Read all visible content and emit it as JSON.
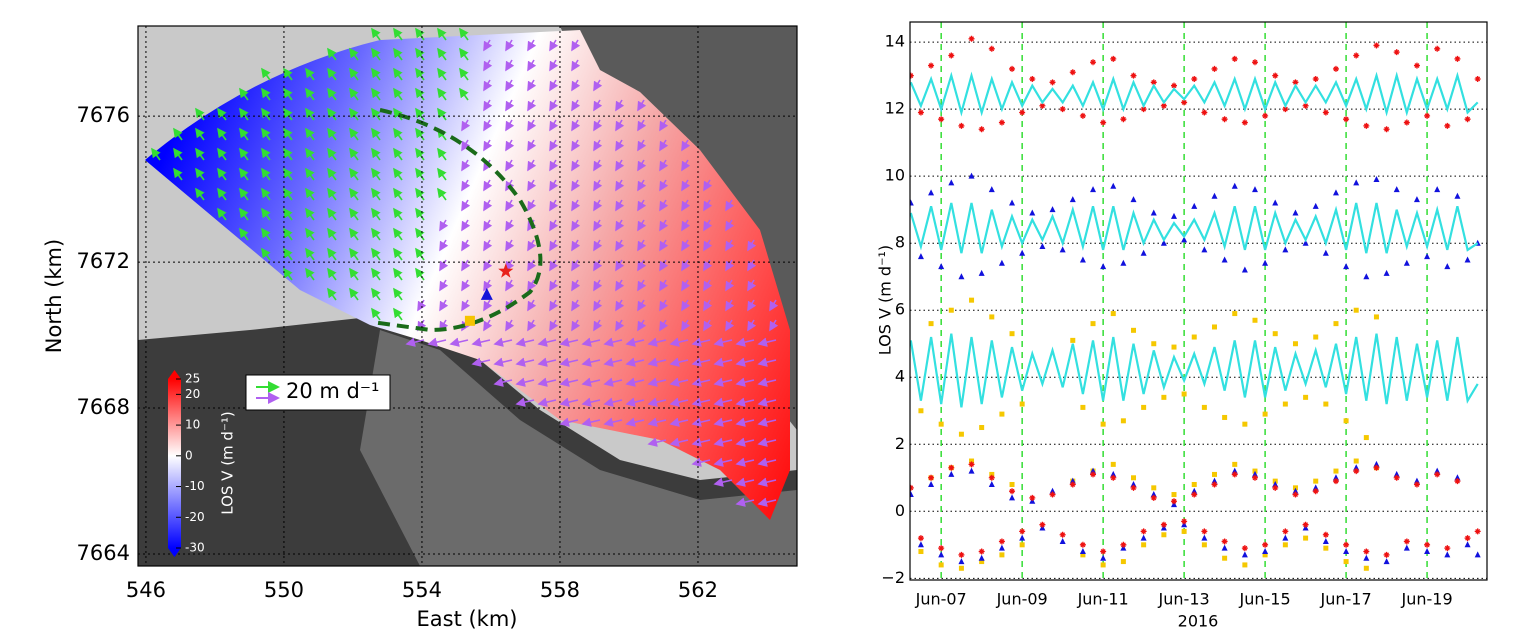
{
  "chart_data": [
    {
      "type": "map",
      "xlabel": "East (km)",
      "ylabel": "North (km)",
      "xlim": [
        545.77,
        564.87
      ],
      "ylim": [
        7663.67,
        7678.47
      ],
      "xticks": [
        546,
        550,
        554,
        558,
        562
      ],
      "yticks": [
        7664,
        7668,
        7672,
        7676
      ],
      "grid": true,
      "legend_label": "20 m d⁻¹",
      "colorbar": {
        "label": "LOS V (m d⁻¹)",
        "lim": [
          -30,
          25
        ],
        "ticks": [
          25,
          20,
          10,
          0,
          -10,
          -20,
          -30
        ]
      },
      "markers": [
        {
          "shape": "star",
          "color": "#e8211b",
          "x": 556.43,
          "y": 7671.75
        },
        {
          "shape": "triangle",
          "color": "#1414d8",
          "x": 555.88,
          "y": 7671.1
        },
        {
          "shape": "square",
          "color": "#f5c400",
          "x": 555.39,
          "y": 7670.39
        }
      ]
    },
    {
      "type": "scatter",
      "xlabel": "2016",
      "ylabel": "LOS V (m d⁻¹)",
      "xlim": [
        6.23,
        20.48
      ],
      "ylim": [
        -2.05,
        14.6
      ],
      "xticks": [
        {
          "value": 7,
          "label": "Jun-07"
        },
        {
          "value": 9,
          "label": "Jun-09"
        },
        {
          "value": 11,
          "label": "Jun-11"
        },
        {
          "value": 13,
          "label": "Jun-13"
        },
        {
          "value": 15,
          "label": "Jun-15"
        },
        {
          "value": 17,
          "label": "Jun-17"
        },
        {
          "value": 19,
          "label": "Jun-19"
        }
      ],
      "yticks": [
        {
          "value": -2,
          "label": "−2"
        },
        0,
        2,
        4,
        6,
        8,
        10,
        12,
        14
      ],
      "grid": true,
      "xgrid_color": "#33dd33",
      "x": [
        6.25,
        6.5,
        6.75,
        7,
        7.25,
        7.5,
        7.75,
        8,
        8.25,
        8.5,
        8.75,
        9,
        9.25,
        9.5,
        9.75,
        10,
        10.25,
        10.5,
        10.75,
        11,
        11.25,
        11.5,
        11.75,
        12,
        12.25,
        12.5,
        12.75,
        13,
        13.25,
        13.5,
        13.75,
        14,
        14.25,
        14.5,
        14.75,
        15,
        15.25,
        15.5,
        15.75,
        16,
        16.25,
        16.5,
        16.75,
        17,
        17.25,
        17.5,
        17.75,
        18,
        18.25,
        18.5,
        18.75,
        19,
        19.25,
        19.5,
        19.75,
        20,
        20.25
      ],
      "series": [
        {
          "kind": "scatter",
          "marker": "star",
          "color": "#ee1111",
          "values": [
            13.0,
            11.9,
            13.3,
            11.7,
            13.6,
            11.5,
            14.1,
            11.4,
            13.8,
            11.6,
            13.2,
            11.9,
            12.9,
            12.1,
            12.8,
            12.0,
            13.1,
            11.8,
            13.4,
            11.6,
            13.5,
            11.7,
            13.0,
            12.0,
            12.8,
            12.1,
            12.7,
            12.2,
            12.9,
            11.9,
            13.2,
            11.7,
            13.5,
            11.6,
            13.4,
            11.8,
            13.0,
            12.0,
            12.8,
            12.1,
            12.9,
            11.9,
            13.2,
            11.7,
            13.6,
            11.5,
            13.9,
            11.4,
            13.7,
            11.6,
            13.3,
            11.8,
            13.8,
            11.5,
            13.5,
            11.7,
            12.9
          ]
        },
        {
          "kind": "scatter",
          "marker": "triangle",
          "color": "#1111dd",
          "values": [
            9.2,
            7.6,
            9.5,
            7.3,
            9.8,
            7.0,
            10.0,
            7.1,
            9.6,
            7.4,
            9.2,
            7.7,
            8.9,
            7.9,
            9.0,
            7.8,
            9.3,
            7.5,
            9.6,
            7.3,
            9.7,
            7.4,
            9.3,
            7.7,
            8.9,
            8.0,
            8.8,
            8.1,
            9.1,
            7.8,
            9.4,
            7.5,
            9.7,
            7.2,
            9.6,
            7.4,
            9.2,
            7.8,
            8.9,
            8.0,
            9.1,
            7.7,
            9.5,
            7.3,
            9.8,
            7.0,
            9.9,
            7.1,
            9.6,
            7.4,
            9.3,
            7.6,
            9.6,
            7.3,
            9.4,
            7.5,
            8.0
          ]
        },
        {
          "kind": "scatter",
          "marker": "square",
          "color": "#f5c800",
          "values": [
            null,
            3.0,
            5.6,
            2.6,
            6.0,
            2.3,
            6.3,
            2.5,
            5.8,
            2.9,
            5.3,
            3.2,
            null,
            null,
            null,
            null,
            5.1,
            3.1,
            5.6,
            2.6,
            5.9,
            2.7,
            5.4,
            3.1,
            5.0,
            3.4,
            4.9,
            3.5,
            5.2,
            3.1,
            5.5,
            2.8,
            5.9,
            2.6,
            5.7,
            2.9,
            5.3,
            3.2,
            5.0,
            3.4,
            5.2,
            3.2,
            5.6,
            2.7,
            6.0,
            2.2,
            5.8,
            null,
            null,
            null,
            null,
            null,
            null,
            null,
            null,
            null,
            null
          ]
        },
        {
          "kind": "scatter",
          "marker": "square",
          "color": "#f5c800",
          "values": [
            null,
            -1.2,
            1.0,
            -1.6,
            1.3,
            -1.7,
            1.5,
            -1.5,
            1.1,
            -1.3,
            0.8,
            -1.0,
            null,
            null,
            null,
            null,
            0.9,
            -1.3,
            1.2,
            -1.6,
            1.4,
            -1.5,
            1.0,
            -1.0,
            0.7,
            -0.7,
            0.5,
            -0.6,
            0.8,
            -1.0,
            1.1,
            -1.4,
            1.4,
            -1.6,
            1.2,
            -1.3,
            0.9,
            -1.0,
            0.7,
            -0.8,
            0.9,
            -1.1,
            1.2,
            -1.5,
            1.5,
            -1.7,
            1.3,
            null,
            null,
            null,
            null,
            null,
            null,
            null,
            null,
            null,
            null
          ]
        },
        {
          "kind": "scatter",
          "marker": "triangle",
          "color": "#1111dd",
          "values": [
            0.5,
            -1.0,
            0.8,
            -1.3,
            1.1,
            -1.5,
            1.2,
            -1.4,
            0.8,
            -1.1,
            0.4,
            -0.8,
            0.3,
            -0.5,
            0.6,
            -0.9,
            0.9,
            -1.2,
            1.2,
            -1.4,
            1.1,
            -1.1,
            0.8,
            -0.8,
            0.5,
            -0.5,
            0.2,
            -0.4,
            0.6,
            -0.8,
            0.9,
            -1.1,
            1.2,
            -1.3,
            1.1,
            -1.2,
            0.8,
            -0.8,
            0.6,
            -0.5,
            0.7,
            -0.9,
            1.0,
            -1.2,
            1.3,
            -1.4,
            1.4,
            -1.5,
            1.1,
            -1.1,
            0.9,
            -1.2,
            1.2,
            -1.3,
            1.0,
            -1.0,
            -1.3
          ]
        },
        {
          "kind": "scatter",
          "marker": "star",
          "color": "#ee1111",
          "values": [
            0.7,
            -0.8,
            1.0,
            -1.1,
            1.3,
            -1.3,
            1.4,
            -1.2,
            1.0,
            -0.9,
            0.6,
            -0.6,
            0.4,
            -0.4,
            0.5,
            -0.7,
            0.8,
            -1.0,
            1.1,
            -1.2,
            1.0,
            -1.0,
            0.7,
            -0.6,
            0.4,
            -0.4,
            0.3,
            -0.3,
            0.5,
            -0.6,
            0.8,
            -0.9,
            1.1,
            -1.1,
            1.0,
            -1.0,
            0.7,
            -0.6,
            0.5,
            -0.4,
            0.6,
            -0.7,
            0.9,
            -1.0,
            1.2,
            -1.2,
            1.3,
            -1.3,
            1.0,
            -0.9,
            0.8,
            -1.0,
            1.1,
            -1.1,
            0.9,
            -0.8,
            -0.6
          ]
        },
        {
          "kind": "line",
          "color": "#33e0e0",
          "values": [
            12.8,
            12.1,
            12.9,
            12.0,
            13.0,
            11.9,
            13.0,
            11.9,
            12.9,
            12.0,
            12.8,
            12.1,
            12.7,
            12.2,
            12.6,
            12.2,
            12.7,
            12.1,
            12.8,
            12.0,
            12.9,
            12.0,
            12.8,
            12.1,
            12.7,
            12.2,
            12.6,
            12.3,
            12.7,
            12.2,
            12.8,
            12.1,
            12.9,
            12.0,
            12.9,
            12.0,
            12.8,
            12.1,
            12.7,
            12.2,
            12.7,
            12.2,
            12.8,
            12.1,
            12.9,
            12.0,
            13.0,
            11.9,
            13.0,
            11.9,
            12.9,
            12.0,
            12.9,
            12.0,
            13.0,
            11.9,
            12.2
          ]
        },
        {
          "kind": "line",
          "color": "#33e0e0",
          "values": [
            8.9,
            7.9,
            9.1,
            7.8,
            9.2,
            7.7,
            9.2,
            7.7,
            9.0,
            7.9,
            8.8,
            8.0,
            8.7,
            8.1,
            8.8,
            8.0,
            9.0,
            7.9,
            9.1,
            7.8,
            9.1,
            7.8,
            8.9,
            8.0,
            8.7,
            8.1,
            8.6,
            8.2,
            8.7,
            8.1,
            8.9,
            7.9,
            9.1,
            7.8,
            9.1,
            7.8,
            8.9,
            8.0,
            8.7,
            8.1,
            8.8,
            8.0,
            9.0,
            7.8,
            9.2,
            7.7,
            9.2,
            7.7,
            9.0,
            7.9,
            8.9,
            7.9,
            9.0,
            7.8,
            9.1,
            7.8,
            8.0
          ]
        },
        {
          "kind": "line",
          "color": "#33e0e0",
          "values": [
            5.1,
            3.3,
            5.2,
            3.2,
            5.3,
            3.1,
            5.2,
            3.2,
            5.1,
            3.4,
            4.9,
            3.6,
            4.7,
            3.8,
            4.8,
            3.7,
            5.0,
            3.5,
            5.1,
            3.3,
            5.2,
            3.3,
            5.0,
            3.5,
            4.8,
            3.7,
            4.6,
            3.9,
            4.7,
            3.8,
            4.9,
            3.6,
            5.1,
            3.4,
            5.1,
            3.4,
            4.9,
            3.6,
            4.7,
            3.8,
            4.8,
            3.7,
            5.0,
            3.5,
            5.2,
            3.3,
            5.3,
            3.2,
            5.2,
            3.3,
            5.0,
            3.4,
            5.1,
            3.3,
            5.2,
            3.3,
            3.8
          ]
        }
      ]
    }
  ]
}
